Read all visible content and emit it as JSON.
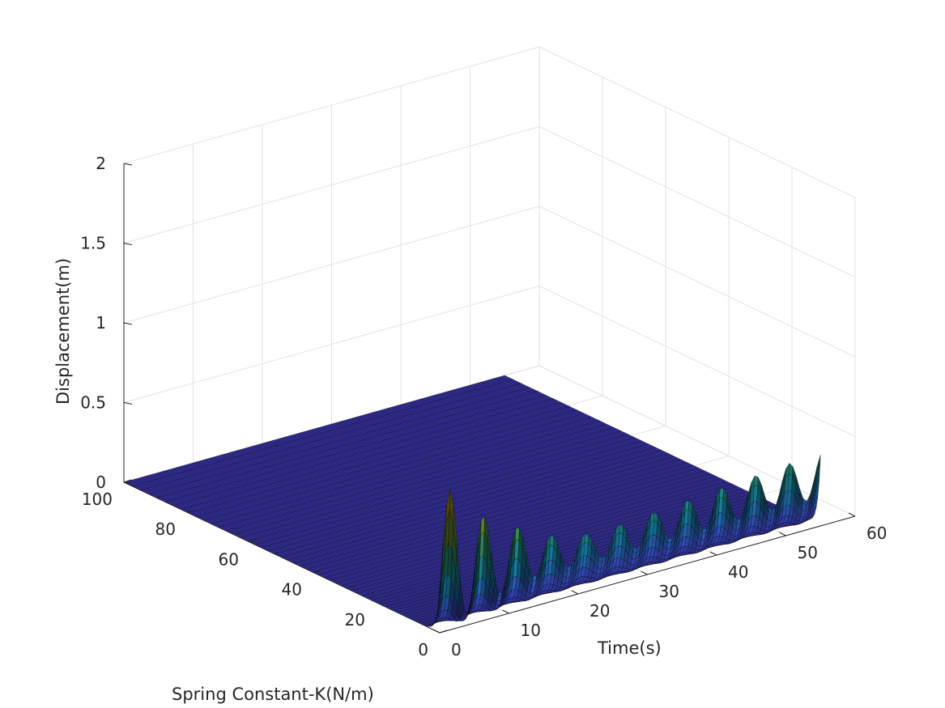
{
  "chart_data": {
    "type": "surface",
    "title": "",
    "xlabel": "Time(s)",
    "ylabel": "Spring Constant-K(N/m)",
    "zlabel": "Displacement(m)",
    "xlim": [
      0,
      60
    ],
    "ylim": [
      0,
      100
    ],
    "zlim": [
      0,
      2
    ],
    "xticks": [
      "0",
      "10",
      "20",
      "30",
      "40",
      "50",
      "60"
    ],
    "yticks": [
      "0",
      "20",
      "40",
      "60",
      "80",
      "100"
    ],
    "zticks": [
      "0",
      "0.5",
      "1",
      "1.5",
      "2"
    ],
    "grid": true,
    "colormap": "parula",
    "x_range_data": [
      0,
      55
    ],
    "y_range_data": [
      0,
      100
    ],
    "peaks": [
      {
        "time": 1.5,
        "displacement": 1.02
      },
      {
        "time": 6.4,
        "displacement": 0.7
      },
      {
        "time": 11.3,
        "displacement": 0.5
      },
      {
        "time": 16.2,
        "displacement": 0.36
      },
      {
        "time": 21.1,
        "displacement": 0.3
      },
      {
        "time": 26.0,
        "displacement": 0.3
      },
      {
        "time": 30.9,
        "displacement": 0.32
      },
      {
        "time": 35.8,
        "displacement": 0.34
      },
      {
        "time": 40.7,
        "displacement": 0.36
      },
      {
        "time": 45.6,
        "displacement": 0.38
      },
      {
        "time": 50.5,
        "displacement": 0.4
      },
      {
        "time": 55.0,
        "displacement": 0.42
      }
    ],
    "surface_note": "Displacement near zero for K above ~2 N/m; oscillating response rises along K≈0 edge"
  }
}
